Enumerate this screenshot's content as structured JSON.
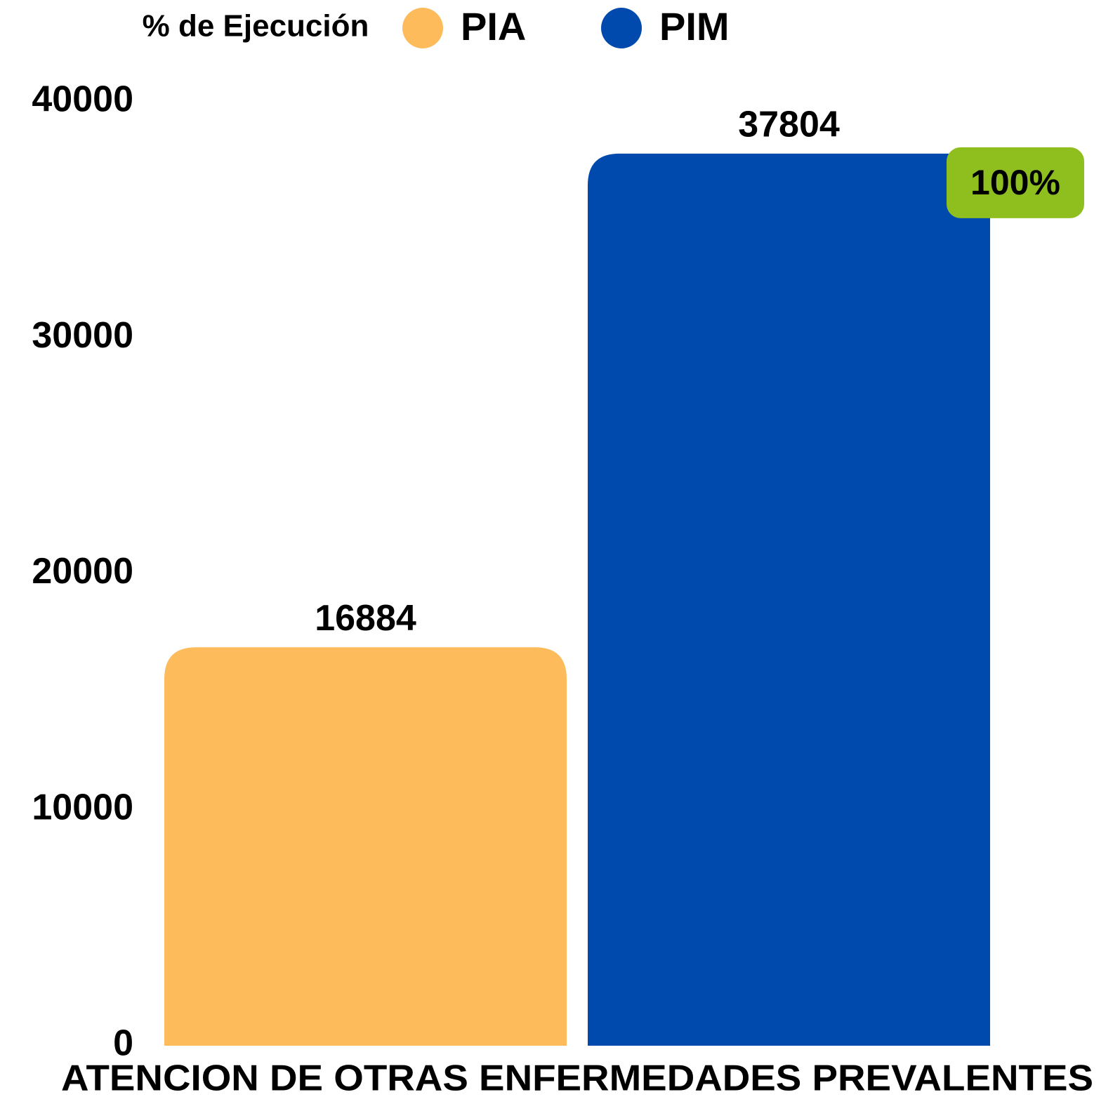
{
  "chart_data": {
    "type": "bar",
    "legend_title": "% de Ejecución",
    "categories": [
      "ATENCION DE OTRAS ENFERMEDADES PREVALENTES"
    ],
    "series": [
      {
        "name": "PIA",
        "color": "#fdbb5c",
        "values": [
          16884
        ]
      },
      {
        "name": "PIM",
        "color": "#004aad",
        "values": [
          37804
        ]
      }
    ],
    "annotations": [
      "100%"
    ],
    "annotation_color": "#8fbf1f",
    "ylim": [
      0,
      40000
    ],
    "yticks": [
      0,
      10000,
      20000,
      30000,
      40000
    ],
    "grid": false,
    "legend": "top"
  }
}
